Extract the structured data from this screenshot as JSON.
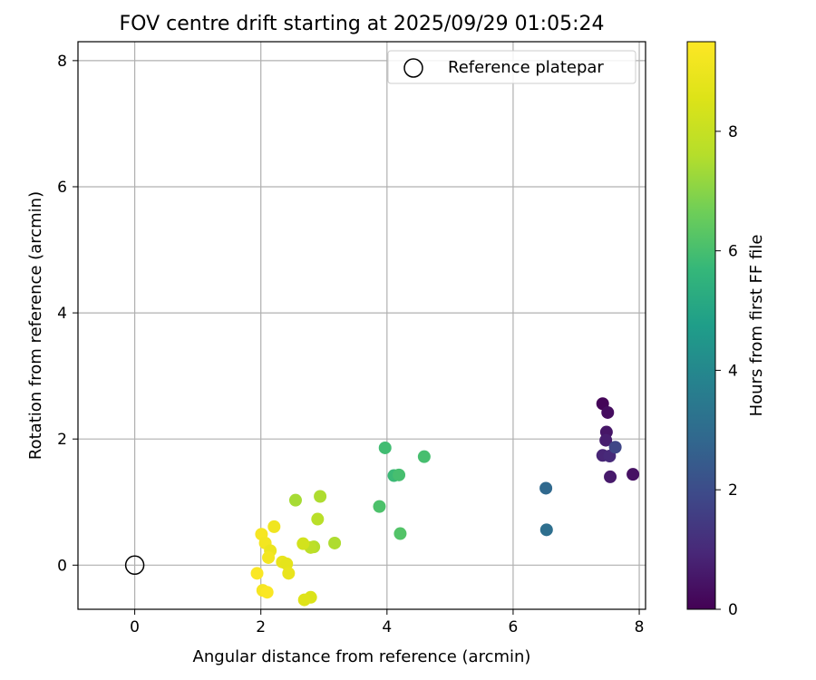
{
  "chart_data": {
    "type": "scatter",
    "title": "FOV centre drift starting at 2025/09/29 01:05:24",
    "xlabel": "Angular distance from reference (arcmin)",
    "ylabel": "Rotation from reference (arcmin)",
    "xlim": [
      -0.9,
      8.1
    ],
    "ylim": [
      -0.7,
      8.3
    ],
    "xticks": [
      0,
      2,
      4,
      6,
      8
    ],
    "yticks": [
      0,
      2,
      4,
      6,
      8
    ],
    "grid": true,
    "legend": {
      "placement": "upper-right",
      "entries": [
        "Reference platepar"
      ]
    },
    "reference_point": {
      "name": "Reference platepar",
      "x": 0,
      "y": 0
    },
    "colorbar": {
      "label": "Hours from first FF file",
      "colormap": "viridis",
      "range": [
        0,
        9.5
      ],
      "ticks": [
        0,
        2,
        4,
        6,
        8
      ]
    },
    "points": [
      {
        "x": 7.42,
        "y": 2.56,
        "hours": 0.1
      },
      {
        "x": 7.5,
        "y": 2.42,
        "hours": 0.3
      },
      {
        "x": 7.48,
        "y": 2.11,
        "hours": 0.5
      },
      {
        "x": 7.47,
        "y": 1.98,
        "hours": 0.7
      },
      {
        "x": 7.42,
        "y": 1.74,
        "hours": 0.9
      },
      {
        "x": 7.53,
        "y": 1.73,
        "hours": 1.0
      },
      {
        "x": 7.9,
        "y": 1.44,
        "hours": 0.4
      },
      {
        "x": 7.54,
        "y": 1.4,
        "hours": 0.6
      },
      {
        "x": 7.62,
        "y": 1.87,
        "hours": 1.8
      },
      {
        "x": 6.52,
        "y": 1.22,
        "hours": 2.9
      },
      {
        "x": 6.53,
        "y": 0.56,
        "hours": 3.1
      },
      {
        "x": 3.97,
        "y": 1.86,
        "hours": 5.9
      },
      {
        "x": 4.59,
        "y": 1.72,
        "hours": 6.0
      },
      {
        "x": 4.11,
        "y": 1.42,
        "hours": 5.8
      },
      {
        "x": 4.19,
        "y": 1.43,
        "hours": 6.0
      },
      {
        "x": 3.88,
        "y": 0.93,
        "hours": 6.1
      },
      {
        "x": 4.21,
        "y": 0.5,
        "hours": 6.2
      },
      {
        "x": 2.55,
        "y": 1.03,
        "hours": 7.4
      },
      {
        "x": 2.94,
        "y": 1.09,
        "hours": 7.5
      },
      {
        "x": 2.9,
        "y": 0.73,
        "hours": 7.7
      },
      {
        "x": 3.17,
        "y": 0.35,
        "hours": 7.5
      },
      {
        "x": 2.84,
        "y": 0.29,
        "hours": 7.6
      },
      {
        "x": 2.79,
        "y": 0.28,
        "hours": 7.8
      },
      {
        "x": 2.67,
        "y": 0.34,
        "hours": 8.3
      },
      {
        "x": 2.79,
        "y": -0.51,
        "hours": 8.5
      },
      {
        "x": 2.69,
        "y": -0.55,
        "hours": 8.6
      },
      {
        "x": 2.21,
        "y": 0.61,
        "hours": 9.1
      },
      {
        "x": 2.01,
        "y": 0.49,
        "hours": 9.3
      },
      {
        "x": 2.07,
        "y": 0.35,
        "hours": 9.2
      },
      {
        "x": 2.15,
        "y": 0.23,
        "hours": 9.0
      },
      {
        "x": 2.12,
        "y": 0.12,
        "hours": 9.2
      },
      {
        "x": 2.34,
        "y": 0.05,
        "hours": 8.9
      },
      {
        "x": 2.41,
        "y": 0.02,
        "hours": 8.8
      },
      {
        "x": 1.94,
        "y": -0.13,
        "hours": 9.4
      },
      {
        "x": 2.44,
        "y": -0.13,
        "hours": 8.9
      },
      {
        "x": 2.03,
        "y": -0.4,
        "hours": 9.3
      },
      {
        "x": 2.1,
        "y": -0.43,
        "hours": 9.4
      }
    ]
  }
}
